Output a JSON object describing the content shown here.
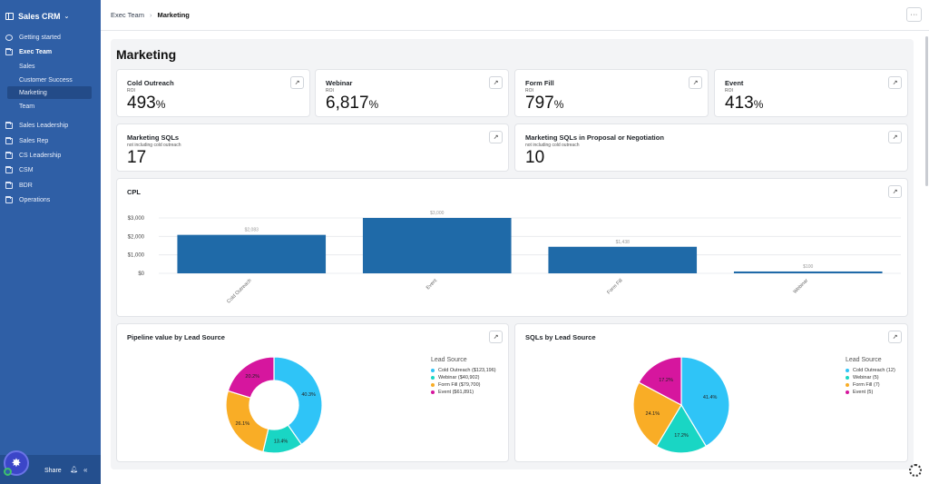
{
  "sidebar": {
    "app_name": "Sales CRM",
    "items": [
      {
        "label": "Getting started",
        "icon": "circle-icon"
      },
      {
        "label": "Exec Team",
        "icon": "folder-icon"
      },
      {
        "label": "Sales",
        "icon": ""
      },
      {
        "label": "Customer Success",
        "icon": ""
      },
      {
        "label": "Marketing",
        "icon": ""
      },
      {
        "label": "Team",
        "icon": ""
      },
      {
        "label": "Sales Leadership",
        "icon": "folder-icon"
      },
      {
        "label": "Sales Rep",
        "icon": "folder-icon"
      },
      {
        "label": "CS Leadership",
        "icon": "folder-icon"
      },
      {
        "label": "CSM",
        "icon": "folder-icon"
      },
      {
        "label": "BDR",
        "icon": "folder-icon"
      },
      {
        "label": "Operations",
        "icon": "folder-icon"
      }
    ],
    "share_label": "Share"
  },
  "topbar": {
    "crumb_parent": "Exec Team",
    "crumb_current": "Marketing",
    "more_label": "···"
  },
  "page": {
    "title": "Marketing"
  },
  "kpis": [
    {
      "title": "Cold Outreach",
      "sub": "ROI",
      "value": "493",
      "unit": "%"
    },
    {
      "title": "Webinar",
      "sub": "ROI",
      "value": "6,817",
      "unit": "%"
    },
    {
      "title": "Form Fill",
      "sub": "ROI",
      "value": "797",
      "unit": "%"
    },
    {
      "title": "Event",
      "sub": "ROI",
      "value": "413",
      "unit": "%"
    },
    {
      "title": "Marketing SQLs",
      "sub": "not including cold outreach",
      "value": "17",
      "unit": ""
    },
    {
      "title": "Marketing SQLs in Proposal or Negotiation",
      "sub": "not including cold outreach",
      "value": "10",
      "unit": ""
    }
  ],
  "expand_icon": "↗",
  "colors": {
    "bar": "#1f6aa8",
    "cold_outreach": "#2fc4f7",
    "webinar": "#19d6c4",
    "form_fill": "#f9ad26",
    "event": "#d6169e"
  },
  "chart_data": [
    {
      "type": "bar",
      "title": "CPL",
      "categories": [
        "Cold Outreach",
        "Event",
        "Form Fill",
        "Webinar"
      ],
      "values": [
        2083,
        3000,
        1438,
        100
      ],
      "value_labels": [
        "$2,083",
        "$3,000",
        "$1,438",
        "$100"
      ],
      "yticks": [
        0,
        1000,
        2000,
        3000
      ],
      "ytick_labels": [
        "$0",
        "$1,000",
        "$2,000",
        "$3,000"
      ],
      "ylim": [
        0,
        3000
      ],
      "grid": true
    },
    {
      "type": "pie",
      "title": "Pipeline value by Lead Source",
      "donut": true,
      "legend_title": "Lead Source",
      "categories": [
        "Cold Outreach ($123,196)",
        "Webinar ($40,902)",
        "Form Fill ($79,700)",
        "Event ($61,891)"
      ],
      "values": [
        123196,
        40902,
        79700,
        61891
      ],
      "value_labels": [
        "40.3%",
        "13.4%",
        "26.1%",
        "20.2%"
      ],
      "legend_placement": "right"
    },
    {
      "type": "pie",
      "title": "SQLs by Lead Source",
      "donut": false,
      "legend_title": "Lead Source",
      "categories": [
        "Cold Outreach (12)",
        "Webinar (5)",
        "Form Fill (7)",
        "Event (5)"
      ],
      "values": [
        12,
        5,
        7,
        5
      ],
      "value_labels": [
        "41.4%",
        "17.2%",
        "24.1%",
        "17.2%"
      ],
      "legend_placement": "right"
    }
  ]
}
